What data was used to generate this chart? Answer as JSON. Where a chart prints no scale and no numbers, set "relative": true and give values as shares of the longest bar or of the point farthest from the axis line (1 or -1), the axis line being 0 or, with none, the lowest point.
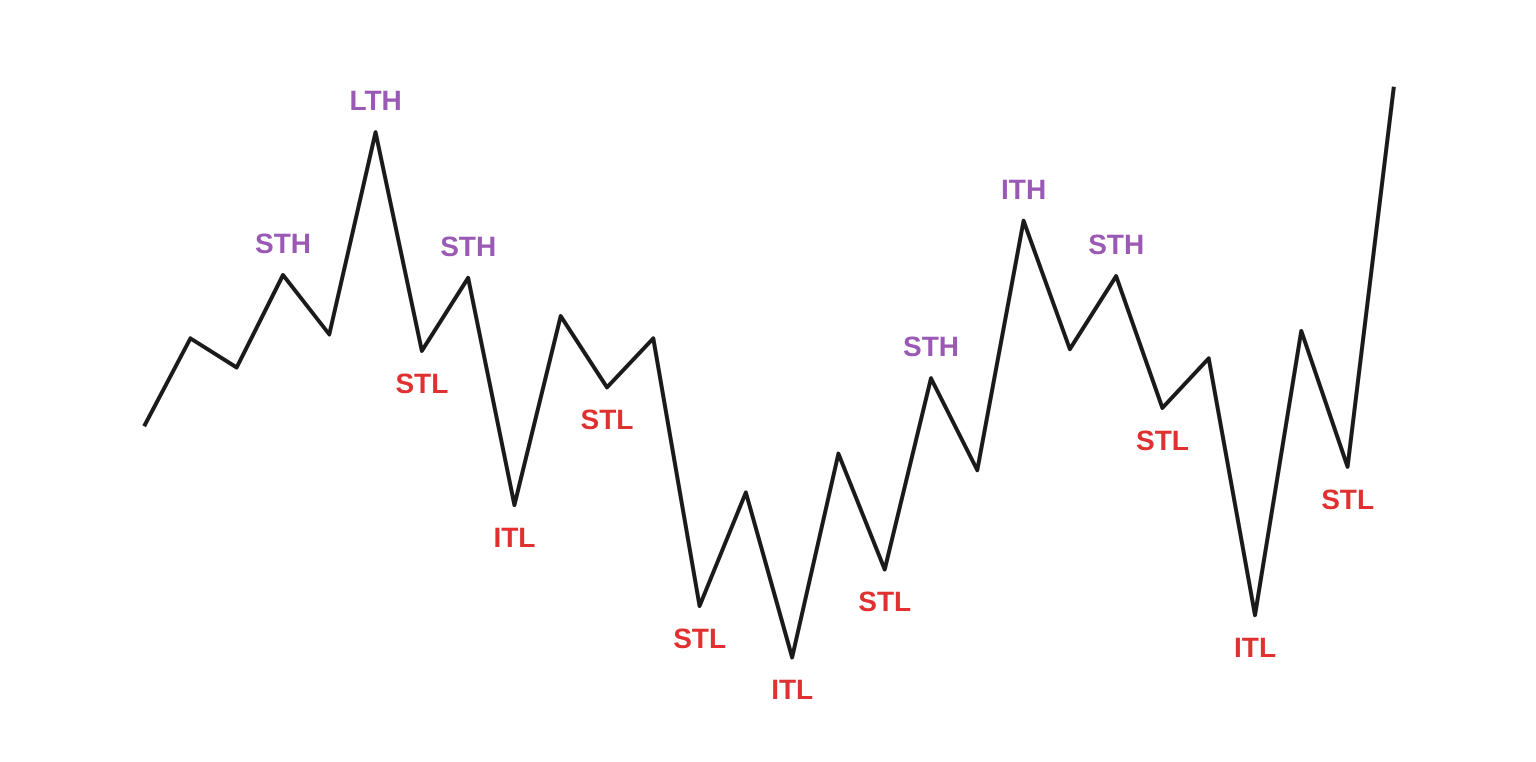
{
  "chart_data": {
    "type": "line",
    "relative": true,
    "categories": [
      null,
      null,
      null,
      null,
      null,
      null,
      null,
      null,
      null,
      null,
      null,
      null,
      null,
      null,
      null,
      null,
      null,
      null,
      null,
      null,
      null,
      null,
      null,
      null,
      null,
      null,
      null,
      null
    ],
    "series": [
      {
        "color": "#1a1a1a",
        "values": [
          0.405,
          0.559,
          0.508,
          0.67,
          0.566,
          0.92,
          0.537,
          0.665,
          0.267,
          0.598,
          0.473,
          0.559,
          0.09,
          0.289,
          0,
          0.357,
          0.154,
          0.489,
          0.328,
          0.765,
          0.54,
          0.668,
          0.437,
          0.524,
          0.074,
          0.572,
          0.334,
          1
        ]
      }
    ],
    "annotations": [
      {
        "text": "STH",
        "y": 0.67
      },
      {
        "text": "LTH",
        "y": 0.92
      },
      {
        "text": "STL",
        "y": 0.537
      },
      {
        "text": "STH",
        "y": 0.665
      },
      {
        "text": "ITL",
        "y": 0.267
      },
      {
        "text": "STL",
        "y": 0.473
      },
      {
        "text": "STL",
        "y": 0.09
      },
      {
        "text": "ITL",
        "y": 0
      },
      {
        "text": "STL",
        "y": 0.154
      },
      {
        "text": "STH",
        "y": 0.489
      },
      {
        "text": "ITH",
        "y": 0.765
      },
      {
        "text": "STH",
        "y": 0.668
      },
      {
        "text": "STL",
        "y": 0.437
      },
      {
        "text": "ITL",
        "y": 0.074
      },
      {
        "text": "STL",
        "y": 0.334
      }
    ],
    "marker": "none",
    "line_style": "solid"
  }
}
